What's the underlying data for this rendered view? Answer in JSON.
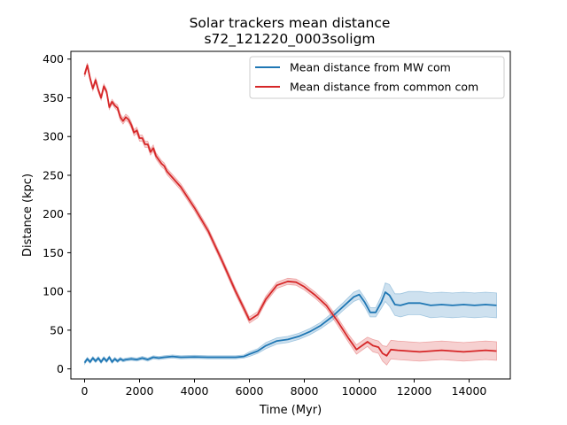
{
  "chart_data": {
    "type": "line",
    "title": "Solar trackers mean distance",
    "subtitle": "s72_121220_0003soligm",
    "xlabel": "Time (Myr)",
    "ylabel": "Distance (kpc)",
    "xlim": [
      -500,
      15500
    ],
    "ylim": [
      -13,
      410
    ],
    "xticks": [
      0,
      2000,
      4000,
      6000,
      8000,
      10000,
      12000,
      14000
    ],
    "yticks": [
      0,
      50,
      100,
      150,
      200,
      250,
      300,
      350,
      400
    ],
    "grid": false,
    "legend_position": "top-right",
    "series": [
      {
        "name": "Mean distance from MW com",
        "color": "#1f77b4",
        "band_color": "#1f77b4",
        "x": [
          0,
          100,
          200,
          300,
          400,
          500,
          600,
          700,
          800,
          900,
          1000,
          1100,
          1200,
          1300,
          1400,
          1500,
          1700,
          1900,
          2100,
          2300,
          2500,
          2700,
          2900,
          3200,
          3500,
          4000,
          4500,
          5000,
          5500,
          5800,
          6000,
          6300,
          6600,
          7000,
          7400,
          7800,
          8200,
          8600,
          9000,
          9400,
          9800,
          10000,
          10200,
          10400,
          10600,
          10800,
          10950,
          11100,
          11300,
          11500,
          11800,
          12200,
          12600,
          13000,
          13400,
          13800,
          14200,
          14600,
          15000
        ],
        "y": [
          8,
          13,
          9,
          14,
          10,
          14,
          9,
          14,
          10,
          15,
          9,
          13,
          10,
          13,
          11,
          12,
          13,
          12,
          14,
          12,
          15,
          14,
          15,
          16,
          15,
          15.5,
          15,
          15,
          15,
          16,
          19,
          23,
          30,
          36,
          38,
          42,
          48,
          56,
          67,
          80,
          93,
          96,
          86,
          73,
          73,
          86,
          99,
          95,
          83,
          82,
          85,
          85,
          82,
          83,
          82,
          83,
          82,
          83,
          82
        ],
        "band_halfwidth": [
          2,
          2,
          2,
          2,
          2,
          2,
          2,
          2,
          2,
          2,
          2,
          2,
          2,
          2,
          2,
          2,
          2,
          2,
          2,
          2,
          2,
          2,
          2,
          2,
          2,
          2,
          2,
          2,
          2,
          2,
          3,
          3,
          4,
          4,
          4,
          4,
          4,
          4,
          5,
          5,
          6,
          6,
          6,
          6,
          6,
          8,
          12,
          14,
          14,
          15,
          15,
          15,
          16,
          16,
          16,
          16,
          16,
          16,
          16
        ]
      },
      {
        "name": "Mean distance from common com",
        "color": "#d62728",
        "band_color": "#d62728",
        "x": [
          0,
          100,
          200,
          300,
          400,
          500,
          600,
          700,
          800,
          900,
          1000,
          1100,
          1200,
          1300,
          1400,
          1500,
          1600,
          1700,
          1800,
          1900,
          2000,
          2100,
          2200,
          2300,
          2400,
          2500,
          2600,
          2700,
          2800,
          2900,
          3000,
          3500,
          4000,
          4500,
          5000,
          5500,
          5800,
          6000,
          6300,
          6600,
          7000,
          7400,
          7700,
          8000,
          8400,
          8800,
          9200,
          9600,
          9900,
          10100,
          10300,
          10500,
          10700,
          10850,
          11000,
          11150,
          11400,
          11800,
          12200,
          12600,
          13000,
          13400,
          13800,
          14200,
          14600,
          15000
        ],
        "y": [
          380,
          392,
          375,
          362,
          373,
          360,
          350,
          365,
          358,
          338,
          345,
          340,
          337,
          325,
          320,
          325,
          322,
          315,
          305,
          308,
          298,
          298,
          290,
          290,
          280,
          285,
          275,
          270,
          265,
          262,
          255,
          235,
          208,
          178,
          140,
          100,
          78,
          63,
          70,
          90,
          108,
          113,
          112,
          106,
          95,
          82,
          62,
          40,
          25,
          30,
          35,
          30,
          28,
          20,
          17,
          25,
          24,
          23,
          22,
          23,
          24,
          23,
          22,
          23,
          24,
          23
        ],
        "band_halfwidth": [
          3,
          3,
          3,
          3,
          3,
          3,
          3,
          3,
          3,
          3,
          3,
          3,
          4,
          4,
          4,
          4,
          4,
          4,
          4,
          4,
          4,
          4,
          4,
          4,
          4,
          4,
          4,
          4,
          4,
          4,
          4,
          4,
          4,
          4,
          4,
          4,
          4,
          4,
          4,
          4,
          4,
          4,
          4,
          4,
          4,
          4,
          5,
          5,
          6,
          6,
          6,
          8,
          8,
          10,
          12,
          12,
          12,
          12,
          12,
          12,
          12,
          12,
          12,
          12,
          12,
          12
        ]
      }
    ]
  }
}
